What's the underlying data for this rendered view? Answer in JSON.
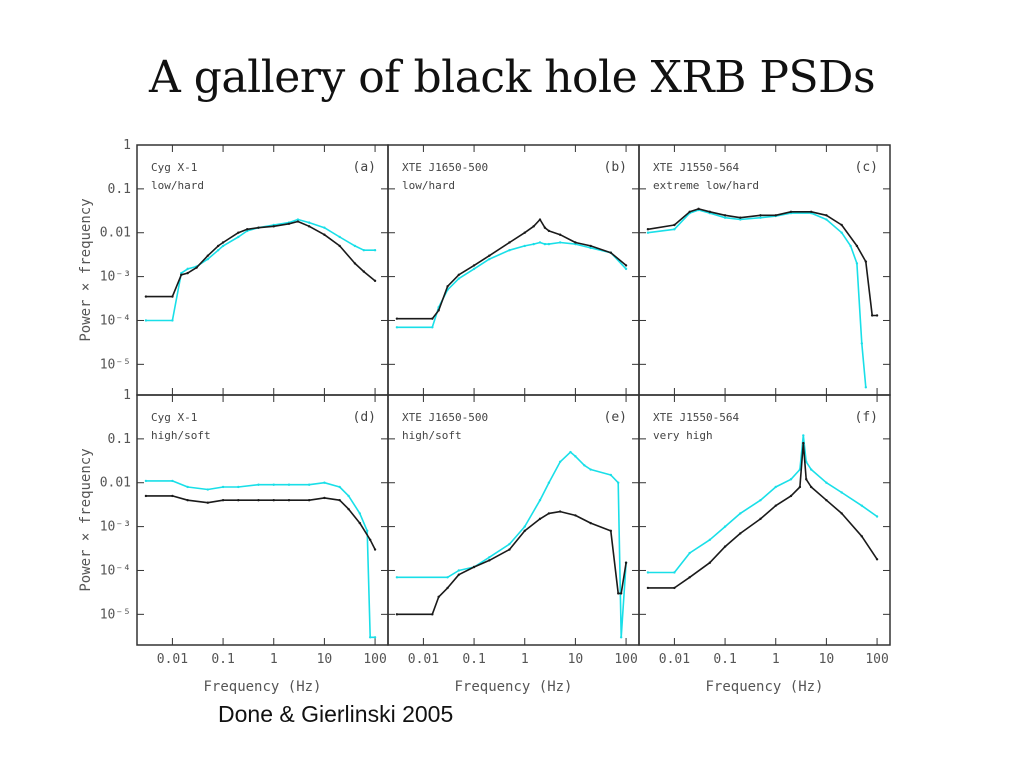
{
  "slide": {
    "title": "A gallery of black hole XRB PSDs",
    "citation": "Done & Gierlinski 2005"
  },
  "colors": {
    "series_black": "#1a1a1a",
    "series_cyan": "#19dfe8",
    "frame": "#333333"
  },
  "chart_data": {
    "type": "line",
    "layout": "2x3 grid of panels sharing axes",
    "xlabel": "Frequency (Hz)",
    "ylabel": "Power × frequency",
    "x_scale": "log",
    "y_scale": "log",
    "xlim": [
      0.002,
      180
    ],
    "ylim": [
      2e-06,
      1
    ],
    "x_ticks": [
      0.01,
      0.1,
      1,
      10,
      100
    ],
    "x_tick_labels": [
      "0.01",
      "0.1",
      "1",
      "10",
      "100"
    ],
    "y_ticks": [
      1,
      0.1,
      0.01,
      0.001,
      0.0001,
      1e-05
    ],
    "y_tick_labels": [
      "1",
      "0.1",
      "0.01",
      "10⁻³",
      "10⁻⁴",
      "10⁻⁵"
    ],
    "panels": [
      {
        "id": "a",
        "letter": "(a)",
        "source": "Cyg X-1",
        "state": "low/hard",
        "series": [
          {
            "color": "black",
            "x": [
              0.003,
              0.01,
              0.015,
              0.02,
              0.03,
              0.05,
              0.08,
              0.1,
              0.2,
              0.3,
              0.5,
              1,
              2,
              3,
              5,
              10,
              20,
              40,
              60,
              100
            ],
            "y": [
              0.00035,
              0.00035,
              0.0011,
              0.0012,
              0.0016,
              0.003,
              0.005,
              0.006,
              0.01,
              0.012,
              0.013,
              0.014,
              0.016,
              0.018,
              0.014,
              0.009,
              0.005,
              0.002,
              0.0013,
              0.0008
            ]
          },
          {
            "color": "cyan",
            "x": [
              0.003,
              0.01,
              0.015,
              0.02,
              0.03,
              0.05,
              0.08,
              0.1,
              0.2,
              0.3,
              0.5,
              1,
              2,
              3,
              5,
              10,
              20,
              40,
              60,
              100
            ],
            "y": [
              0.0001,
              0.0001,
              0.0012,
              0.0015,
              0.0017,
              0.0025,
              0.004,
              0.005,
              0.008,
              0.011,
              0.013,
              0.015,
              0.017,
              0.02,
              0.017,
              0.013,
              0.008,
              0.005,
              0.004,
              0.004
            ]
          }
        ]
      },
      {
        "id": "b",
        "letter": "(b)",
        "source": "XTE J1650-500",
        "state": "low/hard",
        "series": [
          {
            "color": "black",
            "x": [
              0.003,
              0.015,
              0.02,
              0.03,
              0.05,
              0.1,
              0.2,
              0.5,
              1,
              1.5,
              2,
              2.5,
              3,
              5,
              10,
              20,
              50,
              100
            ],
            "y": [
              0.00011,
              0.00011,
              0.00017,
              0.0006,
              0.0011,
              0.0018,
              0.003,
              0.006,
              0.01,
              0.014,
              0.02,
              0.013,
              0.011,
              0.009,
              0.006,
              0.005,
              0.0035,
              0.0018
            ]
          },
          {
            "color": "cyan",
            "x": [
              0.003,
              0.015,
              0.02,
              0.03,
              0.05,
              0.1,
              0.2,
              0.5,
              1,
              1.5,
              2,
              2.5,
              3,
              5,
              10,
              20,
              50,
              100
            ],
            "y": [
              7e-05,
              7e-05,
              0.0002,
              0.0005,
              0.0009,
              0.0015,
              0.0025,
              0.004,
              0.005,
              0.0055,
              0.006,
              0.0055,
              0.0055,
              0.006,
              0.0055,
              0.0045,
              0.0035,
              0.0015
            ]
          }
        ]
      },
      {
        "id": "c",
        "letter": "(c)",
        "source": "XTE J1550-564",
        "state": "extreme low/hard",
        "series": [
          {
            "color": "black",
            "x": [
              0.003,
              0.01,
              0.02,
              0.03,
              0.05,
              0.1,
              0.2,
              0.5,
              1,
              2,
              5,
              10,
              20,
              40,
              60,
              80,
              100
            ],
            "y": [
              0.012,
              0.015,
              0.03,
              0.035,
              0.03,
              0.025,
              0.022,
              0.025,
              0.025,
              0.03,
              0.03,
              0.025,
              0.015,
              0.005,
              0.0022,
              0.00013,
              0.00013
            ]
          },
          {
            "color": "cyan",
            "x": [
              0.003,
              0.01,
              0.02,
              0.03,
              0.05,
              0.1,
              0.2,
              0.5,
              1,
              2,
              5,
              10,
              20,
              30,
              40,
              50,
              60
            ],
            "y": [
              0.01,
              0.012,
              0.028,
              0.033,
              0.028,
              0.022,
              0.02,
              0.022,
              0.024,
              0.028,
              0.028,
              0.02,
              0.01,
              0.005,
              0.002,
              3e-05,
              3e-06
            ]
          }
        ]
      },
      {
        "id": "d",
        "letter": "(d)",
        "source": "Cyg X-1",
        "state": "high/soft",
        "series": [
          {
            "color": "black",
            "x": [
              0.003,
              0.01,
              0.02,
              0.05,
              0.1,
              0.2,
              0.5,
              1,
              2,
              5,
              10,
              20,
              30,
              50,
              80,
              100
            ],
            "y": [
              0.005,
              0.005,
              0.004,
              0.0035,
              0.004,
              0.004,
              0.004,
              0.004,
              0.004,
              0.004,
              0.0045,
              0.004,
              0.0025,
              0.0012,
              0.0005,
              0.0003
            ]
          },
          {
            "color": "cyan",
            "x": [
              0.003,
              0.01,
              0.02,
              0.05,
              0.1,
              0.2,
              0.5,
              1,
              2,
              5,
              10,
              20,
              30,
              50,
              70,
              80,
              100
            ],
            "y": [
              0.011,
              0.011,
              0.008,
              0.007,
              0.008,
              0.008,
              0.009,
              0.009,
              0.009,
              0.009,
              0.01,
              0.008,
              0.005,
              0.002,
              0.0008,
              3e-06,
              3e-06
            ]
          }
        ]
      },
      {
        "id": "e",
        "letter": "(e)",
        "source": "XTE J1650-500",
        "state": "high/soft",
        "series": [
          {
            "color": "black",
            "x": [
              0.003,
              0.015,
              0.02,
              0.03,
              0.05,
              0.1,
              0.2,
              0.5,
              1,
              2,
              3,
              5,
              10,
              20,
              50,
              70,
              80,
              100
            ],
            "y": [
              1e-05,
              1e-05,
              2.5e-05,
              4e-05,
              8e-05,
              0.00012,
              0.00017,
              0.0003,
              0.0008,
              0.0015,
              0.002,
              0.0022,
              0.0018,
              0.0012,
              0.0008,
              3e-05,
              3e-05,
              0.00015
            ]
          },
          {
            "color": "cyan",
            "x": [
              0.003,
              0.03,
              0.05,
              0.1,
              0.2,
              0.5,
              1,
              2,
              3,
              5,
              8,
              10,
              15,
              20,
              50,
              70,
              80,
              100
            ],
            "y": [
              7e-05,
              7e-05,
              0.0001,
              0.00012,
              0.0002,
              0.0004,
              0.001,
              0.004,
              0.01,
              0.03,
              0.05,
              0.04,
              0.025,
              0.02,
              0.015,
              0.01,
              3e-06,
              0.00015
            ]
          }
        ]
      },
      {
        "id": "f",
        "letter": "(f)",
        "source": "XTE J1550-564",
        "state": "very high",
        "series": [
          {
            "color": "black",
            "x": [
              0.003,
              0.01,
              0.02,
              0.05,
              0.1,
              0.2,
              0.5,
              1,
              2,
              3,
              3.5,
              4,
              5,
              10,
              20,
              50,
              100
            ],
            "y": [
              4e-05,
              4e-05,
              7e-05,
              0.00015,
              0.00035,
              0.0007,
              0.0015,
              0.003,
              0.005,
              0.008,
              0.08,
              0.012,
              0.008,
              0.004,
              0.002,
              0.0006,
              0.00018
            ]
          },
          {
            "color": "cyan",
            "x": [
              0.003,
              0.01,
              0.02,
              0.05,
              0.1,
              0.2,
              0.5,
              1,
              2,
              3,
              3.5,
              4,
              5,
              10,
              20,
              50,
              100
            ],
            "y": [
              9e-05,
              9e-05,
              0.00025,
              0.0005,
              0.001,
              0.002,
              0.004,
              0.008,
              0.012,
              0.02,
              0.12,
              0.03,
              0.02,
              0.01,
              0.006,
              0.003,
              0.0017
            ]
          }
        ]
      }
    ]
  }
}
